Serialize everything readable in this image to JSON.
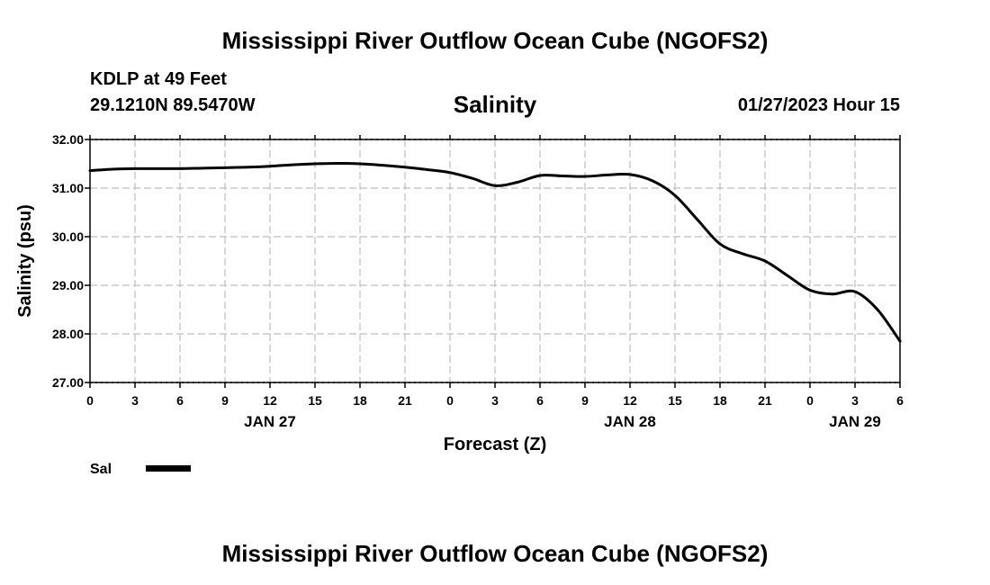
{
  "header": {
    "title_top": "Mississippi River Outflow Ocean Cube (NGOFS2)",
    "title_bottom": "Mississippi River Outflow Ocean Cube (NGOFS2)",
    "station": "KDLP at 49 Feet",
    "coords": "29.1210N  89.5470W",
    "forecast_time": "01/27/2023 Hour 15"
  },
  "chart_data": {
    "type": "line",
    "title": "Salinity",
    "xlabel": "Forecast (Z)",
    "ylabel": "Salinity (psu)",
    "ylim": [
      27.0,
      32.0
    ],
    "xlim": [
      0,
      54
    ],
    "x_units": "hours from Jan 27 00Z",
    "y_ticks": [
      "32.00",
      "31.00",
      "30.00",
      "29.00",
      "28.00",
      "27.00"
    ],
    "x_tick_labels": [
      "0",
      "3",
      "6",
      "9",
      "12",
      "15",
      "18",
      "21",
      "0",
      "3",
      "6",
      "9",
      "12",
      "15",
      "18",
      "21",
      "0",
      "3",
      "6"
    ],
    "date_labels": [
      {
        "label": "JAN 27",
        "hour": 12
      },
      {
        "label": "JAN 28",
        "hour": 36
      },
      {
        "label": "JAN 29",
        "hour": 51
      }
    ],
    "grid": true,
    "series": [
      {
        "name": "Sal",
        "color": "#000000",
        "x": [
          0,
          1.5,
          3,
          4.5,
          6,
          7.5,
          9,
          10.5,
          12,
          13.5,
          15,
          16.5,
          18,
          19.5,
          21,
          22.5,
          24,
          25.5,
          27,
          28.5,
          30,
          31.5,
          33,
          34.5,
          36,
          37.5,
          39,
          40.5,
          42,
          43.5,
          45,
          46.5,
          48,
          49.5,
          51,
          52.5,
          54
        ],
        "values": [
          31.36,
          31.39,
          31.4,
          31.4,
          31.4,
          31.41,
          31.42,
          31.43,
          31.45,
          31.48,
          31.5,
          31.51,
          31.5,
          31.47,
          31.43,
          31.38,
          31.32,
          31.2,
          31.05,
          31.12,
          31.26,
          31.25,
          31.24,
          31.27,
          31.28,
          31.15,
          30.85,
          30.35,
          29.85,
          29.65,
          29.5,
          29.2,
          28.9,
          28.82,
          28.87,
          28.5,
          27.85
        ]
      }
    ],
    "legend": {
      "position": "bottom-left",
      "label": "Sal"
    }
  }
}
